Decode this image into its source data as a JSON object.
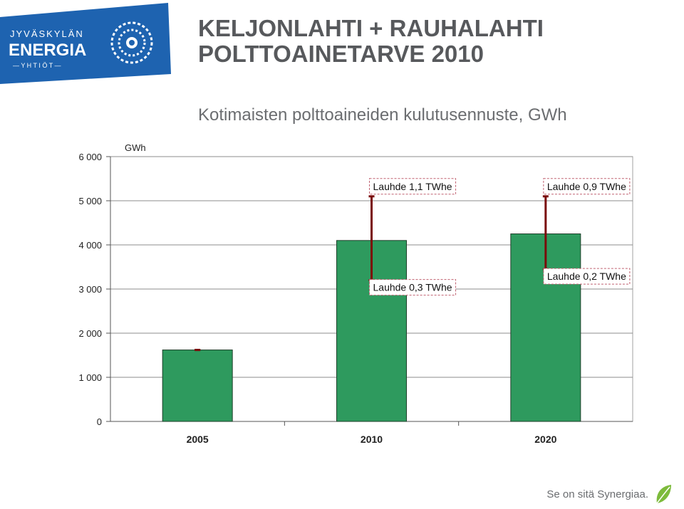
{
  "logo": {
    "line1": "JYVÄSKYLÄN",
    "line2": "ENERGIA",
    "line3": "— Y H T I Ö T —",
    "bg_color": "#1e63b0"
  },
  "title": {
    "line1": "KELJONLAHTI + RAUHALAHTI",
    "line2": "POLTTOAINETARVE 2010"
  },
  "subtitle": "Kotimaisten polttoaineiden kulutusennuste, GWh",
  "footer": {
    "slogan": "Se on sitä Synergiaa.",
    "leaf_icon": "leaf-icon"
  },
  "chart_data": {
    "type": "bar",
    "unit_label": "GWh",
    "categories": [
      "2005",
      "2010",
      "2020"
    ],
    "values": [
      1620,
      4100,
      4250
    ],
    "ylim": [
      0,
      6000
    ],
    "yticks": [
      "0",
      "1 000",
      "2 000",
      "3 000",
      "4 000",
      "5 000",
      "6 000"
    ],
    "ytick_values": [
      0,
      1000,
      2000,
      3000,
      4000,
      5000,
      6000
    ],
    "grid": true,
    "bar_color": "#2e9a5e",
    "error_color": "#7a0a0a",
    "ranges": [
      {
        "category": "2005",
        "low": 1620,
        "high": 1620
      },
      {
        "category": "2010",
        "low": 3200,
        "high": 5100,
        "high_label": "Lauhde 1,1 TWhe",
        "low_label": "Lauhde 0,3 TWhe"
      },
      {
        "category": "2020",
        "low": 3450,
        "high": 5100,
        "high_label": "Lauhde 0,9 TWhe",
        "low_label": "Lauhde 0,2 TWhe"
      }
    ]
  }
}
